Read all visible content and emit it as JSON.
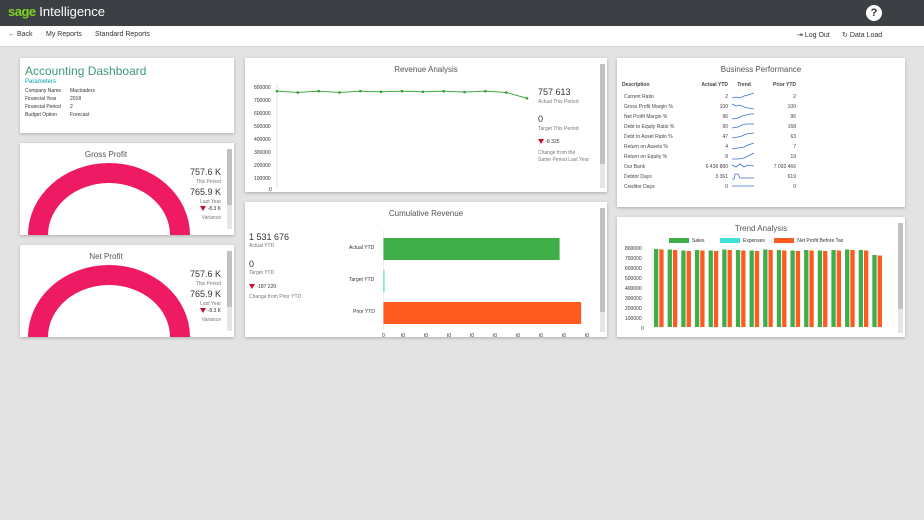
{
  "app": {
    "brand": "sage",
    "product": " Intelligence",
    "help_label": "?"
  },
  "nav": {
    "back": "Back",
    "my_reports": "My Reports",
    "standard_reports": "Standard Reports",
    "log_out": "Log Out",
    "data_load": "Data Load"
  },
  "dashboard": {
    "title": "Accounting Dashboard",
    "params_label": "Parameters",
    "params": [
      {
        "label": "Company Name",
        "value": "Mactraders"
      },
      {
        "label": "Financial Year",
        "value": "2018"
      },
      {
        "label": "Financial Period",
        "value": "2"
      },
      {
        "label": "Budget Option",
        "value": "Forecast"
      }
    ]
  },
  "gross_profit": {
    "title": "Gross Profit",
    "this_period": "757.6 K",
    "this_period_label": "This Period",
    "last_year": "765.9 K",
    "last_year_label": "Last Year",
    "variance": "-8.3 K",
    "variance_label": "Variance"
  },
  "net_profit": {
    "title": "Net Profit",
    "this_period": "757.6 K",
    "this_period_label": "This Period",
    "last_year": "765.9 K",
    "last_year_label": "Last Year",
    "variance": "-8.3 K",
    "variance_label": "Variance"
  },
  "revenue": {
    "title": "Revenue Analysis",
    "actual": "757 613",
    "actual_label": "Actual This Period",
    "target": "0",
    "target_label": "Target This Period",
    "change": "-8 325",
    "change_label_1": "Change from the",
    "change_label_2": "Same Period Last Year",
    "y_ticks": [
      "800000",
      "700000",
      "600000",
      "500000",
      "400000",
      "300000",
      "200000",
      "100000",
      "0"
    ]
  },
  "cumulative": {
    "title": "Cumulative Revenue",
    "actual": "1 531 676",
    "actual_label": "Actual YTD",
    "target": "0",
    "target_label": "Target YTD",
    "change": "-187 220",
    "change_label": "Change from Prior YTD",
    "x_ticks": [
      "0",
      "t0",
      "t0",
      "t0",
      "t0",
      "t0",
      "t0",
      "t0",
      "t0",
      "t0"
    ]
  },
  "business": {
    "title": "Business Performance",
    "headers": [
      "Description",
      "Actual YTD",
      "Trend",
      "Prior YTD"
    ],
    "rows": [
      {
        "desc": "Current Ratio",
        "actual": "2",
        "prior": "2"
      },
      {
        "desc": "Gross Profit Margin %",
        "actual": "100",
        "prior": "100"
      },
      {
        "desc": "Net Profit Margin %",
        "actual": "96",
        "prior": "96"
      },
      {
        "desc": "Debt to Equity Ratio %",
        "actual": "90",
        "prior": "168"
      },
      {
        "desc": "Debt to Asset Ratio %",
        "actual": "47",
        "prior": "63"
      },
      {
        "desc": "Return on Assets %",
        "actual": "4",
        "prior": "7"
      },
      {
        "desc": "Return on Equity %",
        "actual": "8",
        "prior": "19"
      },
      {
        "desc": "Our Bank",
        "actual": "6 436 880",
        "prior": "7 092 466"
      },
      {
        "desc": "Debtor Days",
        "actual": "3 361",
        "prior": "619"
      },
      {
        "desc": "Creditor Days",
        "actual": "0",
        "prior": "0"
      }
    ]
  },
  "trend": {
    "title": "Trend Analysis",
    "legend": [
      "Sales",
      "Expenses",
      "Net Profit Before Tax"
    ],
    "y_ticks": [
      "800000",
      "700000",
      "600000",
      "500000",
      "400000",
      "300000",
      "200000",
      "100000",
      "0"
    ]
  },
  "colors": {
    "accent": "#00a0af",
    "green": "#3fae49",
    "cyan": "#3fe0d8",
    "orange": "#ff5a1f",
    "gauge": "#ee1a63",
    "red": "#c8102e"
  },
  "chart_data": [
    {
      "type": "line",
      "title": "Revenue Analysis",
      "ylim": [
        0,
        800000
      ],
      "series": [
        {
          "values": [
            745000,
            735000,
            745000,
            735000,
            745000,
            740000,
            745000,
            740000,
            745000,
            738000,
            745000,
            735000,
            690000
          ]
        }
      ]
    },
    {
      "type": "bar",
      "title": "Cumulative Revenue",
      "categories": [
        "Actual YTD",
        "Target YTD",
        "Prior YTD"
      ],
      "values": [
        1531676,
        0,
        1718896
      ]
    },
    {
      "type": "bar",
      "title": "Trend Analysis",
      "ylim": [
        0,
        800000
      ],
      "series": [
        {
          "name": "Sales",
          "values": [
            780000,
            775000,
            765000,
            770000,
            765000,
            775000,
            770000,
            765000,
            775000,
            770000,
            765000,
            770000,
            765000,
            770000,
            775000,
            770000,
            720000
          ]
        },
        {
          "name": "Expenses",
          "values": [
            0,
            0,
            0,
            0,
            0,
            0,
            0,
            0,
            0,
            0,
            0,
            0,
            0,
            0,
            0,
            0,
            0
          ]
        },
        {
          "name": "Net Profit Before Tax",
          "values": [
            775000,
            770000,
            760000,
            765000,
            760000,
            770000,
            765000,
            760000,
            770000,
            765000,
            760000,
            765000,
            760000,
            765000,
            770000,
            765000,
            715000
          ]
        }
      ]
    }
  ]
}
